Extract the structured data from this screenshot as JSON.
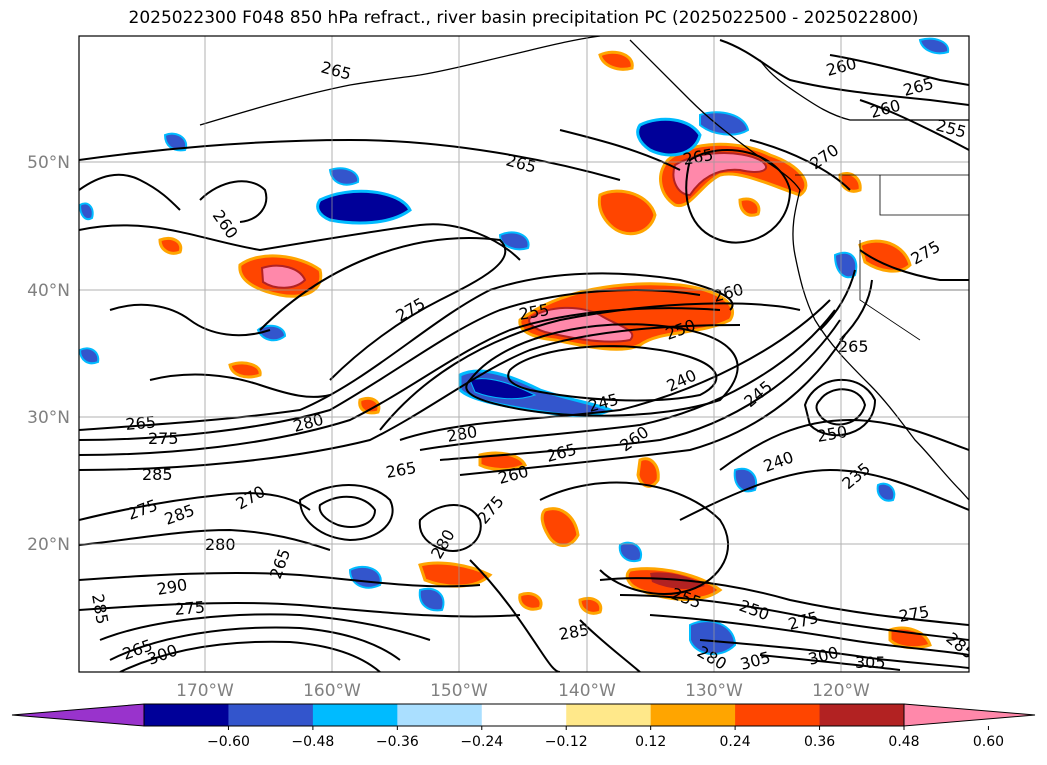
{
  "title": "2025022300 F048 850 hPa refract., river basin precipitation PC (2025022500 - 2025022800)",
  "lat_labels": [
    "50°N",
    "40°N",
    "30°N",
    "20°N"
  ],
  "lon_labels": [
    "170°W",
    "160°W",
    "150°W",
    "140°W",
    "130°W",
    "120°W"
  ],
  "colorbar": {
    "colors": [
      "#9933cc",
      "#000099",
      "#3355cc",
      "#00bbff",
      "#aadfff",
      "#ffffff",
      "#ffe88a",
      "#ffa500",
      "#ff4500",
      "#b22222",
      "#ff88aa"
    ],
    "ticks": [
      "−0.60",
      "−0.48",
      "−0.36",
      "−0.24",
      "−0.12",
      "0.12",
      "0.24",
      "0.36",
      "0.48",
      "0.60"
    ]
  },
  "contour_labels": [
    {
      "text": "265"
    },
    {
      "text": "260"
    },
    {
      "text": "265"
    },
    {
      "text": "260"
    },
    {
      "text": "255"
    },
    {
      "text": "265"
    },
    {
      "text": "265"
    },
    {
      "text": "270"
    },
    {
      "text": "260"
    },
    {
      "text": "275"
    },
    {
      "text": "260"
    },
    {
      "text": "255"
    },
    {
      "text": "250"
    },
    {
      "text": "265"
    },
    {
      "text": "275"
    },
    {
      "text": "265"
    },
    {
      "text": "275"
    },
    {
      "text": "280"
    },
    {
      "text": "280"
    },
    {
      "text": "245"
    },
    {
      "text": "240"
    },
    {
      "text": "250"
    },
    {
      "text": "245"
    },
    {
      "text": "240"
    },
    {
      "text": "235"
    },
    {
      "text": "285"
    },
    {
      "text": "265"
    },
    {
      "text": "260"
    },
    {
      "text": "265"
    },
    {
      "text": "260"
    },
    {
      "text": "275"
    },
    {
      "text": "270"
    },
    {
      "text": "280"
    },
    {
      "text": "285"
    },
    {
      "text": "275"
    },
    {
      "text": "280"
    },
    {
      "text": "290"
    },
    {
      "text": "285"
    },
    {
      "text": "275"
    },
    {
      "text": "265"
    },
    {
      "text": "255"
    },
    {
      "text": "250"
    },
    {
      "text": "285"
    },
    {
      "text": "280"
    },
    {
      "text": "275"
    },
    {
      "text": "300"
    },
    {
      "text": "305"
    },
    {
      "text": "285"
    },
    {
      "text": "300"
    },
    {
      "text": "305"
    },
    {
      "text": "275"
    },
    {
      "text": "265"
    }
  ]
}
